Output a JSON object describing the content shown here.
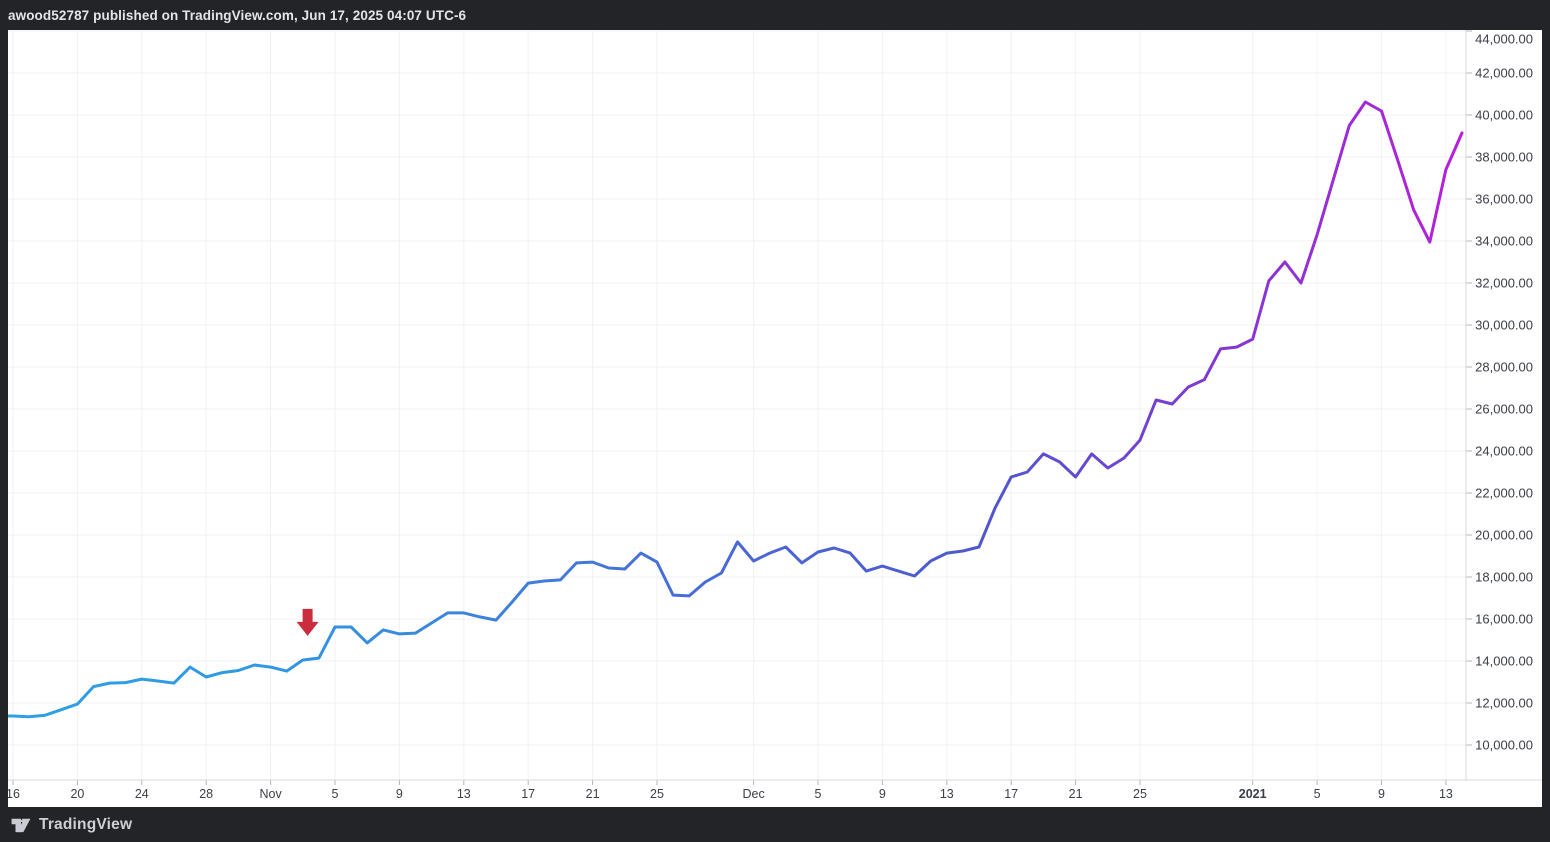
{
  "header": {
    "attribution": "awood52787 published on TradingView.com, Jun 17, 2025 04:07 UTC-6"
  },
  "footer": {
    "brand": "TradingView",
    "logo_icon": "tradingview-logo"
  },
  "colors": {
    "frame_bg": "#232428",
    "chart_bg": "#ffffff",
    "grid": "#f0f2f5",
    "axis_border": "#d6d9df",
    "tick_mark": "#b0b4bc",
    "axis_text": "#3a3e47",
    "header_text": "#e4e5e7",
    "footer_text": "#cdd0d6",
    "arrow": "#cb2d3e",
    "line_gradient": [
      "#2ea0e6",
      "#2f99e3",
      "#3e81dc",
      "#4a68d6",
      "#5058d0",
      "#8138d2",
      "#b81edb"
    ]
  },
  "y_axis": {
    "tick_values": [
      44000,
      42000,
      40000,
      38000,
      36000,
      34000,
      32000,
      30000,
      28000,
      26000,
      24000,
      22000,
      20000,
      18000,
      16000,
      14000,
      12000,
      10000
    ],
    "tick_labels": [
      "44,000.00",
      "42,000.00",
      "40,000.00",
      "38,000.00",
      "36,000.00",
      "34,000.00",
      "32,000.00",
      "30,000.00",
      "28,000.00",
      "26,000.00",
      "24,000.00",
      "22,000.00",
      "20,000.00",
      "18,000.00",
      "16,000.00",
      "14,000.00",
      "12,000.00",
      "10,000.00"
    ]
  },
  "x_axis": {
    "ticks": [
      {
        "label": "16",
        "day": 0,
        "bold": false
      },
      {
        "label": "20",
        "day": 4,
        "bold": false
      },
      {
        "label": "24",
        "day": 8,
        "bold": false
      },
      {
        "label": "28",
        "day": 12,
        "bold": false
      },
      {
        "label": "Nov",
        "day": 16,
        "bold": false
      },
      {
        "label": "5",
        "day": 20,
        "bold": false
      },
      {
        "label": "9",
        "day": 24,
        "bold": false
      },
      {
        "label": "13",
        "day": 28,
        "bold": false
      },
      {
        "label": "17",
        "day": 32,
        "bold": false
      },
      {
        "label": "21",
        "day": 36,
        "bold": false
      },
      {
        "label": "25",
        "day": 40,
        "bold": false
      },
      {
        "label": "Dec",
        "day": 46,
        "bold": false
      },
      {
        "label": "5",
        "day": 50,
        "bold": false
      },
      {
        "label": "9",
        "day": 54,
        "bold": false
      },
      {
        "label": "13",
        "day": 58,
        "bold": false
      },
      {
        "label": "17",
        "day": 62,
        "bold": false
      },
      {
        "label": "21",
        "day": 66,
        "bold": false
      },
      {
        "label": "25",
        "day": 70,
        "bold": false
      },
      {
        "label": "2021",
        "day": 77,
        "bold": true
      },
      {
        "label": "5",
        "day": 81,
        "bold": false
      },
      {
        "label": "9",
        "day": 85,
        "bold": false
      },
      {
        "label": "13",
        "day": 89,
        "bold": false
      }
    ]
  },
  "annotation": {
    "shape": "down-arrow",
    "color": "#cb2d3e",
    "day": 18.3,
    "top_value": 16480,
    "points_to_date": "Nov 3"
  },
  "chart_data": {
    "type": "line",
    "title": "",
    "xlabel": "",
    "ylabel": "",
    "grid": true,
    "legend": false,
    "line_style": "gradient blue-to-purple, width 3",
    "ylim": [
      8300,
      44100
    ],
    "y_tick_step": 2000,
    "dates": [
      "Oct 16",
      "Oct 17",
      "Oct 18",
      "Oct 19",
      "Oct 20",
      "Oct 21",
      "Oct 22",
      "Oct 23",
      "Oct 24",
      "Oct 25",
      "Oct 26",
      "Oct 27",
      "Oct 28",
      "Oct 29",
      "Oct 30",
      "Oct 31",
      "Nov 1",
      "Nov 2",
      "Nov 3",
      "Nov 4",
      "Nov 5",
      "Nov 6",
      "Nov 7",
      "Nov 8",
      "Nov 9",
      "Nov 10",
      "Nov 11",
      "Nov 12",
      "Nov 13",
      "Nov 14",
      "Nov 15",
      "Nov 16",
      "Nov 17",
      "Nov 18",
      "Nov 19",
      "Nov 20",
      "Nov 21",
      "Nov 22",
      "Nov 23",
      "Nov 24",
      "Nov 25",
      "Nov 26",
      "Nov 27",
      "Nov 28",
      "Nov 29",
      "Nov 30",
      "Dec 1",
      "Dec 2",
      "Dec 3",
      "Dec 4",
      "Dec 5",
      "Dec 6",
      "Dec 7",
      "Dec 8",
      "Dec 9",
      "Dec 10",
      "Dec 11",
      "Dec 12",
      "Dec 13",
      "Dec 14",
      "Dec 15",
      "Dec 16",
      "Dec 17",
      "Dec 18",
      "Dec 19",
      "Dec 20",
      "Dec 21",
      "Dec 22",
      "Dec 23",
      "Dec 24",
      "Dec 25",
      "Dec 26",
      "Dec 27",
      "Dec 28",
      "Dec 29",
      "Dec 30",
      "Dec 31",
      "Jan 1",
      "Jan 2",
      "Jan 3",
      "Jan 4",
      "Jan 5",
      "Jan 6",
      "Jan 7",
      "Jan 8",
      "Jan 9",
      "Jan 10",
      "Jan 11",
      "Jan 12",
      "Jan 13",
      "Jan 14"
    ],
    "values": [
      11380,
      11350,
      11420,
      11680,
      11950,
      12780,
      12950,
      12970,
      13140,
      13050,
      12950,
      13710,
      13240,
      13450,
      13550,
      13810,
      13710,
      13520,
      14050,
      14140,
      15620,
      15620,
      14860,
      15480,
      15290,
      15330,
      15810,
      16290,
      16290,
      16100,
      15950,
      16810,
      17710,
      17810,
      17860,
      18670,
      18710,
      18430,
      18380,
      19140,
      18710,
      17140,
      17100,
      17760,
      18190,
      19670,
      18760,
      19140,
      19430,
      18670,
      19190,
      19380,
      19140,
      18280,
      18520,
      18280,
      18050,
      18760,
      19140,
      19240,
      19430,
      21290,
      22760,
      23000,
      23860,
      23480,
      22760,
      23860,
      23190,
      23660,
      24520,
      26430,
      26240,
      27050,
      27400,
      28860,
      28950,
      29330,
      32100,
      33000,
      32000,
      34300,
      36900,
      39500,
      40620,
      40190,
      37860,
      35480,
      33950,
      37400,
      39150
    ]
  }
}
